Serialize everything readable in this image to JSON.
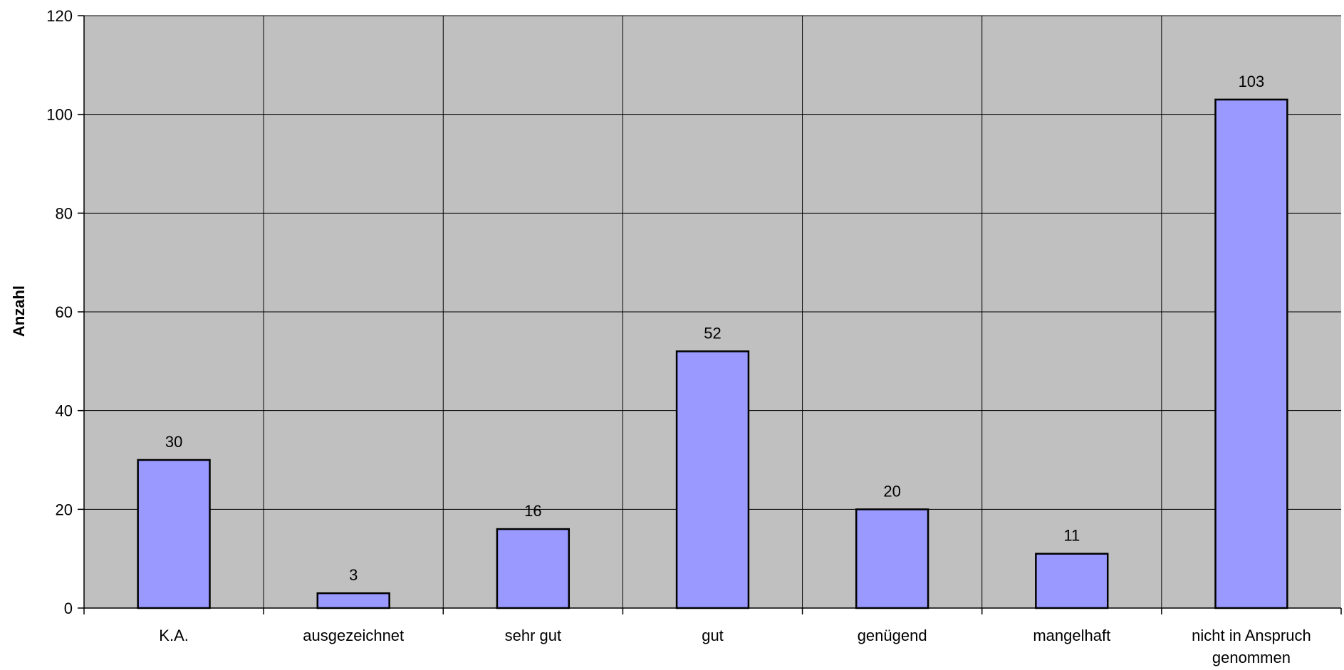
{
  "chart_data": {
    "type": "bar",
    "title": "",
    "xlabel": "",
    "ylabel": "Anzahl",
    "ylim": [
      0,
      120
    ],
    "ytick_step": 20,
    "grid": true,
    "legend": "none",
    "categories": [
      "K.A.",
      "ausgezeichnet",
      "sehr gut",
      "gut",
      "genügend",
      "mangelhaft",
      "nicht in Anspruch genommen"
    ],
    "values": [
      30,
      3,
      16,
      52,
      20,
      11,
      103
    ],
    "colors": {
      "plot_background": "#c0c0c0",
      "bar_fill": "#9999ff",
      "bar_stroke": "#000000",
      "gridline": "#000000"
    }
  }
}
